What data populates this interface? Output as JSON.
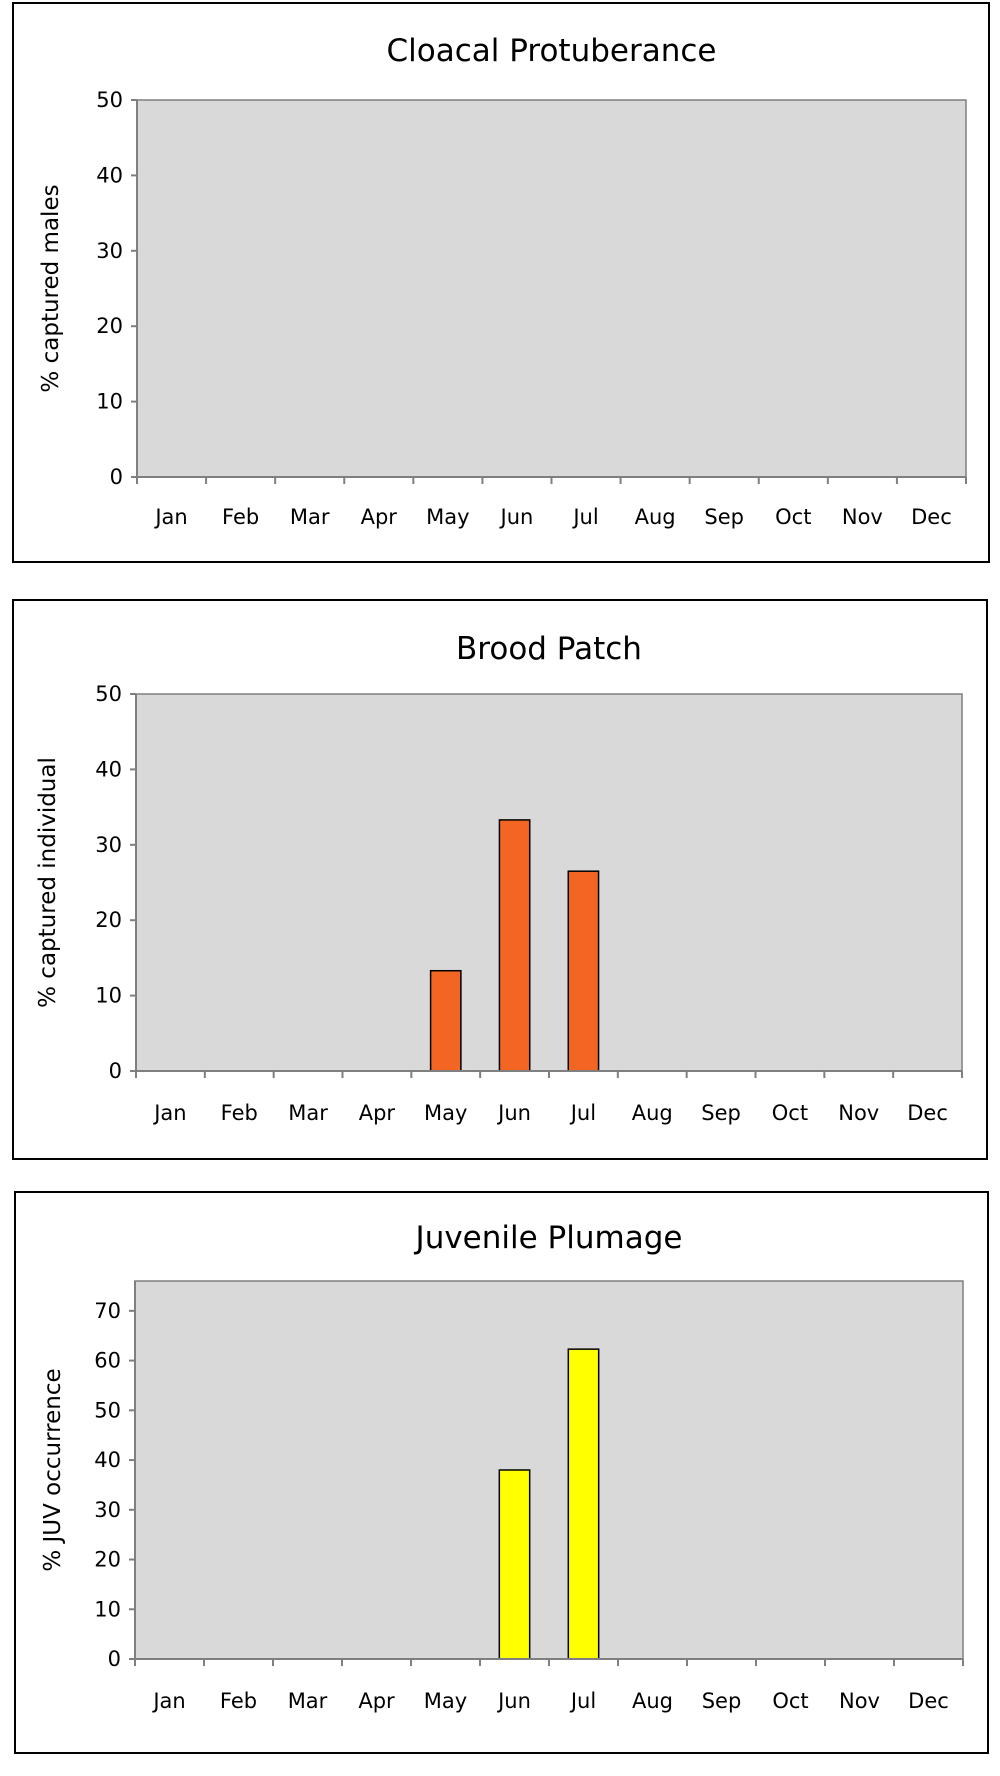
{
  "chart_data": [
    {
      "type": "bar",
      "title": "Cloacal Protuberance",
      "xlabel": "",
      "ylabel": "% captured males",
      "categories": [
        "Jan",
        "Feb",
        "Mar",
        "Apr",
        "May",
        "Jun",
        "Jul",
        "Aug",
        "Sep",
        "Oct",
        "Nov",
        "Dec"
      ],
      "values": [
        0,
        0,
        0,
        0,
        0,
        0,
        0,
        0,
        0,
        0,
        0,
        0
      ],
      "ylim": [
        0,
        50
      ],
      "yticks": [
        0,
        10,
        20,
        30,
        40,
        50
      ],
      "bar_color": "#f26522",
      "plot_background": "#d9d9d9",
      "grid": false,
      "legend": "none"
    },
    {
      "type": "bar",
      "title": "Brood Patch",
      "xlabel": "",
      "ylabel": "% captured individual",
      "categories": [
        "Jan",
        "Feb",
        "Mar",
        "Apr",
        "May",
        "Jun",
        "Jul",
        "Aug",
        "Sep",
        "Oct",
        "Nov",
        "Dec"
      ],
      "values": [
        0,
        0,
        0,
        0,
        13.3,
        33.3,
        26.5,
        0,
        0,
        0,
        0,
        0
      ],
      "ylim": [
        0,
        50
      ],
      "yticks": [
        0,
        10,
        20,
        30,
        40,
        50
      ],
      "bar_color": "#f26522",
      "plot_background": "#d9d9d9",
      "grid": false,
      "legend": "none"
    },
    {
      "type": "bar",
      "title": "Juvenile Plumage",
      "xlabel": "",
      "ylabel": "% JUV occurrence",
      "categories": [
        "Jan",
        "Feb",
        "Mar",
        "Apr",
        "May",
        "Jun",
        "Jul",
        "Aug",
        "Sep",
        "Oct",
        "Nov",
        "Dec"
      ],
      "values": [
        0,
        0,
        0,
        0,
        0,
        38,
        62.3,
        0,
        0,
        0,
        0,
        0
      ],
      "ylim": [
        0,
        76
      ],
      "yticks": [
        0,
        10,
        20,
        30,
        40,
        50,
        60,
        70
      ],
      "bar_color": "#ffff00",
      "plot_background": "#d9d9d9",
      "grid": false,
      "legend": "none"
    }
  ]
}
